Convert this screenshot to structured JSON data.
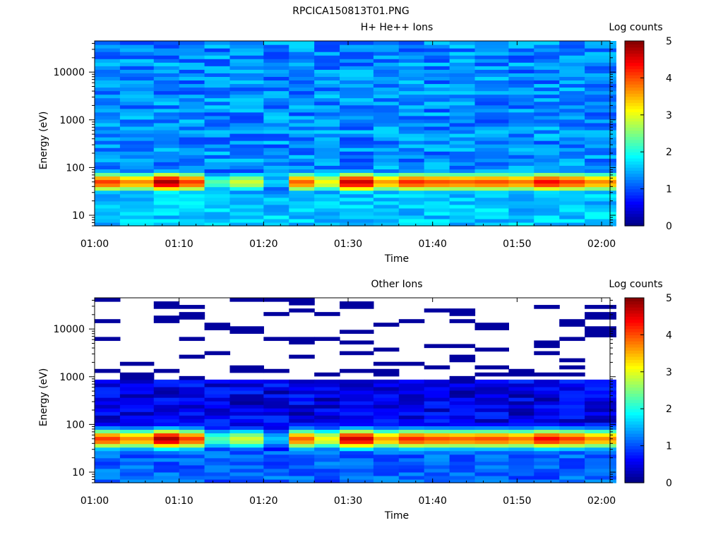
{
  "figure": {
    "title": "RPCICA150813T01.PNG"
  },
  "chart_data": [
    {
      "type": "heatmap",
      "title": "H+ He++ Ions",
      "xlabel": "Time",
      "ylabel": "Energy (eV)",
      "x_ticks": [
        "01:00",
        "01:10",
        "01:20",
        "01:30",
        "01:40",
        "01:50",
        "02:00"
      ],
      "x_range": [
        "01:00",
        "02:01"
      ],
      "y_scale": "log",
      "y_ticks": [
        "10",
        "100",
        "1000",
        "10000"
      ],
      "y_range": [
        6,
        45000
      ],
      "colorbar": {
        "label": "Log counts",
        "range": [
          0,
          5
        ],
        "ticks": [
          "0",
          "1",
          "2",
          "3",
          "4",
          "5"
        ]
      },
      "peak_band_eV": [
        30,
        80
      ],
      "time_bins": [
        "01:00",
        "01:03",
        "01:07",
        "01:10",
        "01:13",
        "01:16",
        "01:20",
        "01:23",
        "01:26",
        "01:29",
        "01:33",
        "01:36",
        "01:39",
        "01:42",
        "01:45",
        "01:49",
        "01:52",
        "01:55",
        "01:58"
      ],
      "peak_log_counts": [
        4.1,
        3.7,
        4.8,
        4.1,
        2.3,
        2.9,
        1.6,
        3.9,
        3.1,
        4.6,
        3.6,
        4.2,
        4.0,
        3.9,
        4.0,
        3.8,
        4.4,
        4.1,
        3.7
      ],
      "background_log_counts": 1.3,
      "low_energy_log_counts": 1.6,
      "sparse": false
    },
    {
      "type": "heatmap",
      "title": "Other Ions",
      "xlabel": "Time",
      "ylabel": "Energy (eV)",
      "x_ticks": [
        "01:00",
        "01:10",
        "01:20",
        "01:30",
        "01:40",
        "01:50",
        "02:00"
      ],
      "x_range": [
        "01:00",
        "02:01"
      ],
      "y_scale": "log",
      "y_ticks": [
        "10",
        "100",
        "1000",
        "10000"
      ],
      "y_range": [
        6,
        45000
      ],
      "colorbar": {
        "label": "Log counts",
        "range": [
          0,
          5
        ],
        "ticks": [
          "0",
          "1",
          "2",
          "3",
          "4",
          "5"
        ]
      },
      "peak_band_eV": [
        30,
        80
      ],
      "time_bins": [
        "01:00",
        "01:03",
        "01:07",
        "01:10",
        "01:13",
        "01:16",
        "01:20",
        "01:23",
        "01:26",
        "01:29",
        "01:33",
        "01:36",
        "01:39",
        "01:42",
        "01:45",
        "01:49",
        "01:52",
        "01:55",
        "01:58"
      ],
      "peak_log_counts": [
        4.1,
        3.7,
        4.8,
        4.1,
        2.3,
        2.9,
        1.6,
        3.9,
        3.1,
        4.6,
        3.6,
        4.2,
        4.0,
        3.9,
        4.0,
        3.8,
        4.4,
        4.1,
        3.7
      ],
      "background_log_counts": 0.5,
      "low_energy_log_counts": 1.1,
      "sparse": true,
      "dense_upper_limit_eV": 800
    }
  ]
}
